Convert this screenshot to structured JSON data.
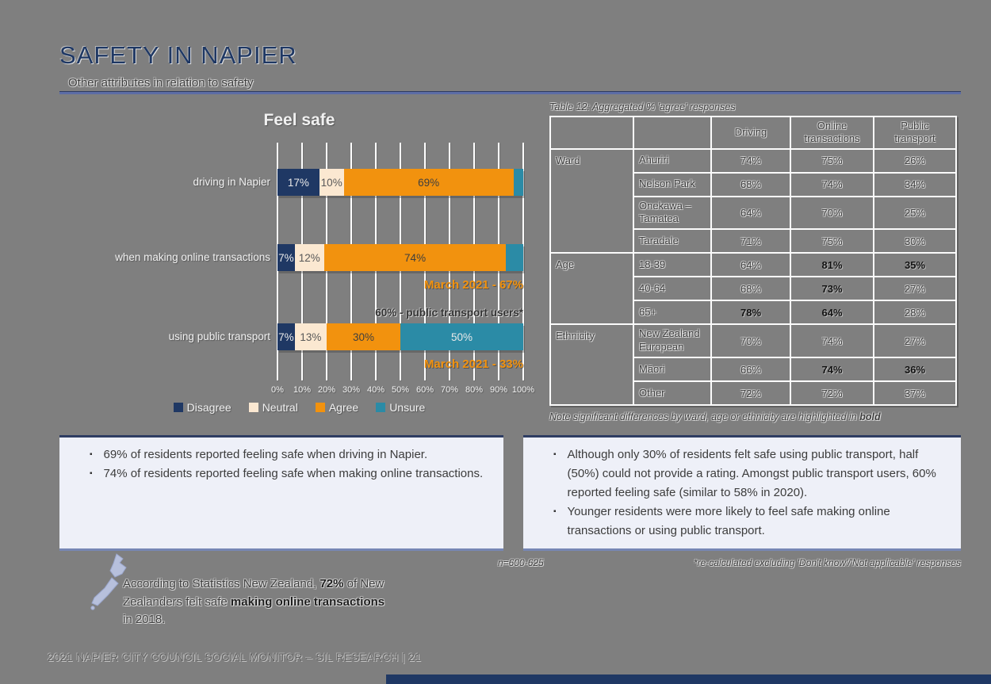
{
  "page": {
    "title": "SAFETY IN NAPIER",
    "subtitle": "Other attributes in relation to safety",
    "footer": "2021 NAPIER CITY COUNCIL SOCIAL MONITOR – SIL RESEARCH | 21"
  },
  "chart_data": {
    "type": "bar",
    "stacked": true,
    "orientation": "horizontal",
    "title": "Feel safe",
    "categories": [
      "driving in Napier",
      "when making online transactions",
      "using public transport"
    ],
    "series": [
      {
        "name": "Disagree",
        "color": "#1f3864",
        "label_color": "#e9e9e9",
        "values": [
          17,
          7,
          7
        ],
        "labels": [
          "17%",
          "7%",
          "7%"
        ]
      },
      {
        "name": "Neutral",
        "color": "#fbe8d1",
        "label_color": "#595959",
        "values": [
          10,
          12,
          13
        ],
        "labels": [
          "10%",
          "12%",
          "13%"
        ]
      },
      {
        "name": "Agree",
        "color": "#f2920e",
        "label_color": "#3f3f3f",
        "values": [
          69,
          74,
          30
        ],
        "labels": [
          "69%",
          "74%",
          "30%"
        ]
      },
      {
        "name": "Unsure",
        "color": "#2b8ba6",
        "label_color": "#e9e9e9",
        "values": [
          4,
          7,
          50
        ],
        "labels": [
          "",
          "",
          "50%"
        ]
      }
    ],
    "xlim": [
      0,
      100
    ],
    "x_ticks": [
      "0%",
      "10%",
      "20%",
      "30%",
      "40%",
      "50%",
      "60%",
      "70%",
      "80%",
      "90%",
      "100%"
    ],
    "annotations": [
      {
        "text": "March 2021 - 67%"
      },
      {
        "text": "60% - public transport users*"
      },
      {
        "text": "March 2021 - 33%"
      }
    ],
    "legend_position": "bottom",
    "grid": true
  },
  "table": {
    "caption": "Table 12: Aggregated % 'agree' responses",
    "columns": [
      "Driving",
      "Online transactions",
      "Public transport"
    ],
    "groups": [
      {
        "name": "Ward",
        "rows": [
          {
            "label": "Ahuriri",
            "values": [
              "74%",
              "75%",
              "26%"
            ],
            "bold": [
              false,
              false,
              false
            ]
          },
          {
            "label": "Nelson Park",
            "values": [
              "68%",
              "74%",
              "34%"
            ],
            "bold": [
              false,
              false,
              false
            ]
          },
          {
            "label": "Onekawa – Tamatea",
            "values": [
              "64%",
              "70%",
              "25%"
            ],
            "bold": [
              false,
              false,
              false
            ]
          },
          {
            "label": "Taradale",
            "values": [
              "71%",
              "75%",
              "30%"
            ],
            "bold": [
              false,
              false,
              false
            ]
          }
        ]
      },
      {
        "name": "Age",
        "rows": [
          {
            "label": "18-39",
            "values": [
              "64%",
              "81%",
              "35%"
            ],
            "bold": [
              false,
              true,
              true
            ]
          },
          {
            "label": "40-64",
            "values": [
              "68%",
              "73%",
              "27%"
            ],
            "bold": [
              false,
              true,
              false
            ]
          },
          {
            "label": "65+",
            "values": [
              "78%",
              "64%",
              "28%"
            ],
            "bold": [
              true,
              true,
              false
            ]
          }
        ]
      },
      {
        "name": "Ethnicity",
        "rows": [
          {
            "label": "New Zealand European",
            "values": [
              "70%",
              "74%",
              "27%"
            ],
            "bold": [
              false,
              false,
              false
            ]
          },
          {
            "label": "Māori",
            "values": [
              "66%",
              "74%",
              "36%"
            ],
            "bold": [
              false,
              true,
              true
            ]
          },
          {
            "label": "Other",
            "values": [
              "72%",
              "72%",
              "37%"
            ],
            "bold": [
              false,
              false,
              false
            ]
          }
        ]
      }
    ],
    "note_text": "Note significant differences by ward, age or ethnicity are highlighted in ",
    "note_bold": "bold"
  },
  "insights": {
    "left": [
      "69% of residents reported feeling safe when driving in Napier.",
      "74% of residents reported feeling safe when making online transactions."
    ],
    "right": [
      "Although only 30% of residents felt safe using public transport, half (50%) could not provide a rating. Amongst public transport users, 60% reported feeling safe (similar to 58% in 2020).",
      "Younger residents were more likely to feel safe making online transactions or using public transport."
    ]
  },
  "footnotes": {
    "sample": "n=600-625",
    "recalc": "*re-calculated excluding 'Don't know'/'Not applicable' responses"
  },
  "callout": {
    "segments": [
      {
        "text": "According to Statistics New Zealand, ",
        "bold": false
      },
      {
        "text": "72%",
        "bold": true
      },
      {
        "text": " of New Zealanders felt safe ",
        "bold": false
      },
      {
        "text": "making online transactions",
        "bold": true
      },
      {
        "text": " in 2018.",
        "bold": false
      }
    ]
  },
  "colors": {
    "background": "#7f7f7f",
    "navy": "#1f3864",
    "orange": "#f2920e",
    "cream": "#fbe8d1",
    "teal": "#2b8ba6",
    "rule_slate": "#5d6da6",
    "box_bg": "#eef0f8",
    "box_border_top": "#2e3d63",
    "box_border_bottom": "#7787b5",
    "map_icon": "#b7c0dc"
  }
}
